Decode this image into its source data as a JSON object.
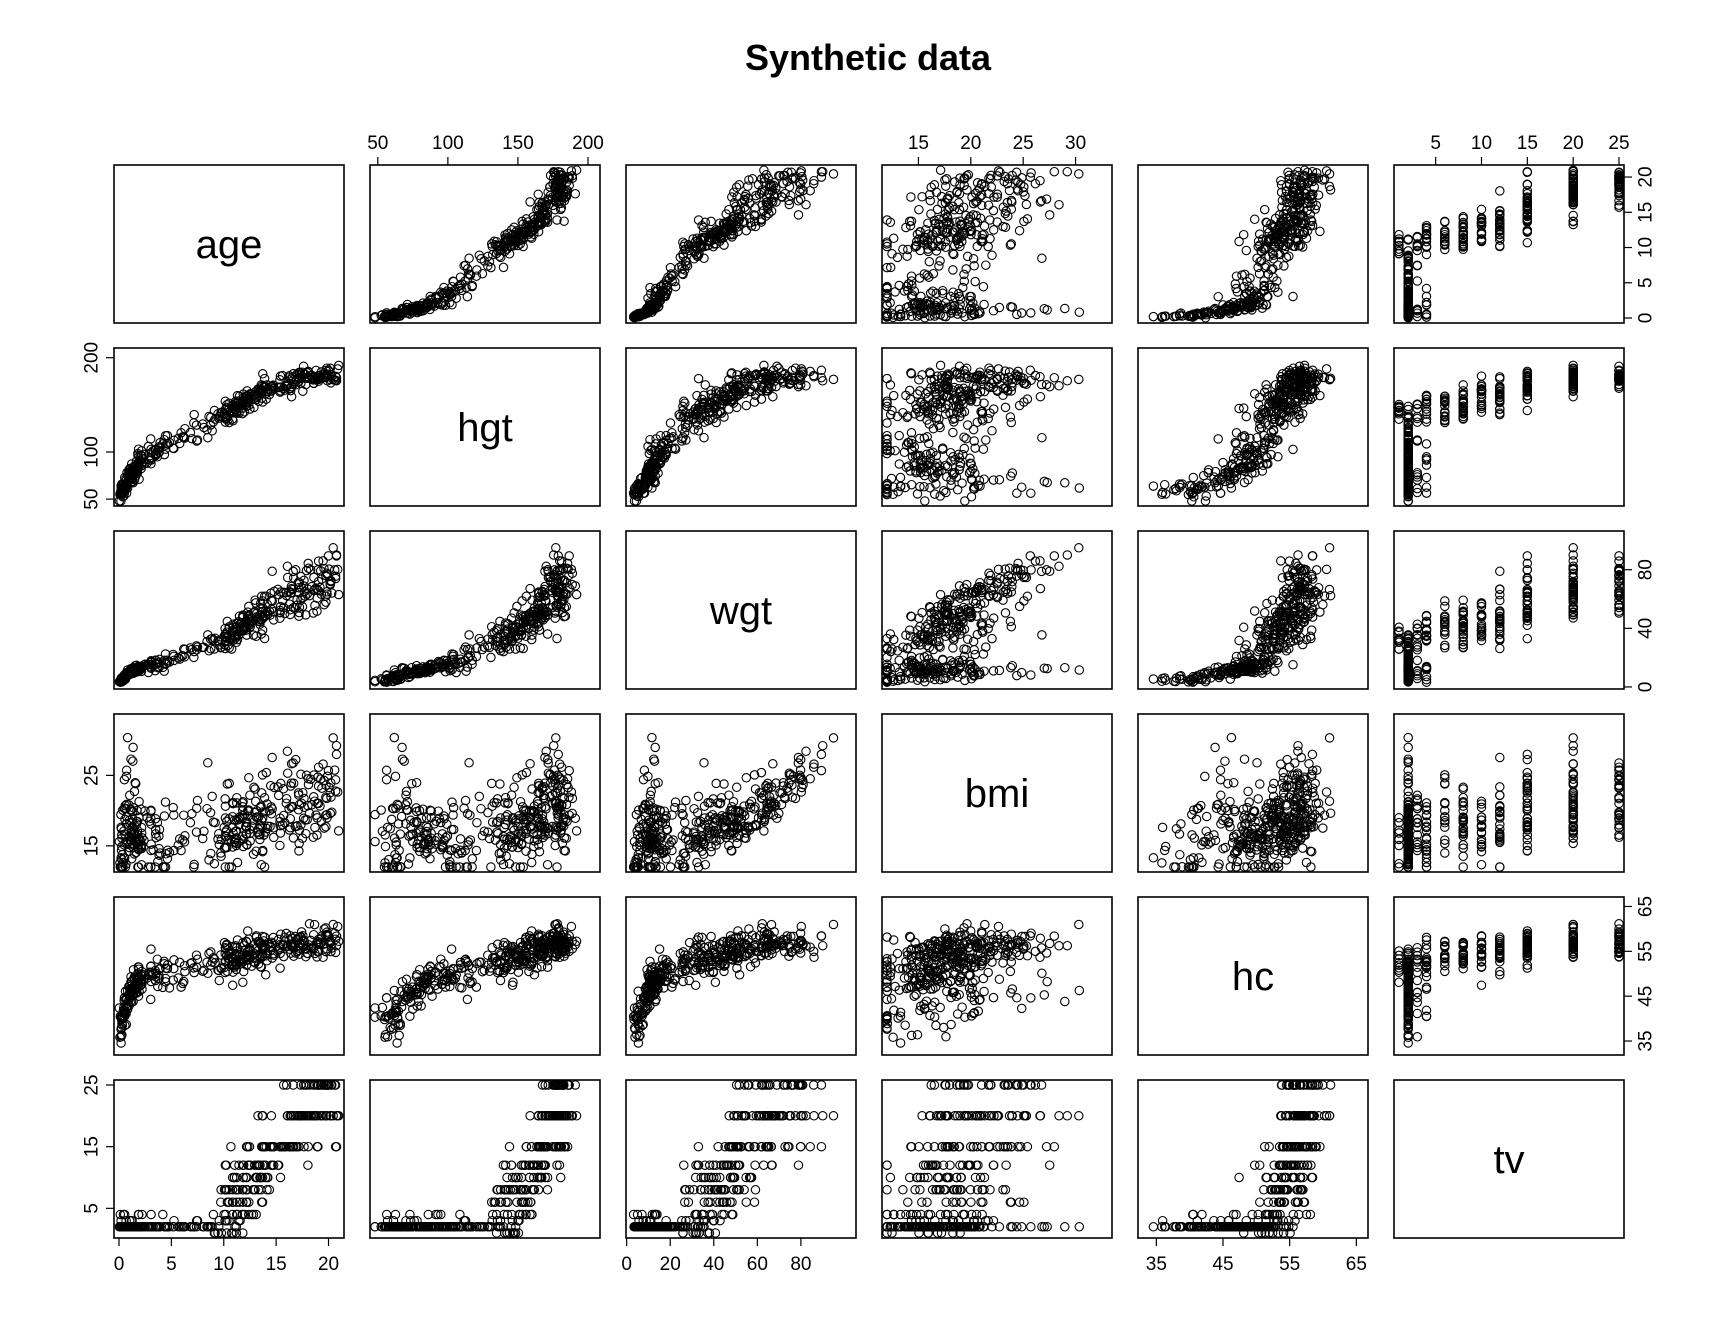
{
  "chart_data": {
    "type": "scatter",
    "subtype": "scatterplot-matrix",
    "title": "Synthetic data",
    "variables": [
      "age",
      "hgt",
      "wgt",
      "bmi",
      "hc",
      "tv"
    ],
    "ranges": {
      "age": [
        0,
        21
      ],
      "hgt": [
        48,
        205
      ],
      "wgt": [
        2,
        103
      ],
      "bmi": [
        12,
        33
      ],
      "hc": [
        33,
        66
      ],
      "tv": [
        1,
        25
      ]
    },
    "ticks": {
      "age": [
        0,
        5,
        10,
        15,
        20
      ],
      "hgt": [
        50,
        100,
        150,
        200
      ],
      "wgt": [
        0,
        20,
        40,
        60,
        80
      ],
      "bmi": [
        15,
        20,
        25,
        30
      ],
      "hc": [
        35,
        45,
        55,
        65
      ],
      "tv": [
        5,
        10,
        15,
        20,
        25
      ]
    },
    "tick_labels": {
      "age_bottom": [
        "0",
        "5",
        "10",
        "15",
        "20"
      ],
      "age_right": [
        "0",
        "5",
        "10",
        "15",
        "20"
      ],
      "hgt_top": [
        "50",
        "100",
        "150",
        "200"
      ],
      "hgt_left": [
        "50",
        "100",
        "200"
      ],
      "wgt_bottom": [
        "0",
        "20",
        "40",
        "60",
        "80"
      ],
      "wgt_right": [
        "0",
        "40",
        "80"
      ],
      "bmi_top": [
        "15",
        "20",
        "25",
        "30"
      ],
      "bmi_left": [
        "15",
        "25"
      ],
      "hc_bottom": [
        "35",
        "45",
        "55",
        "65"
      ],
      "hc_right": [
        "35",
        "45",
        "55",
        "65"
      ],
      "tv_top": [
        "5",
        "10",
        "15",
        "20",
        "25"
      ],
      "tv_left": [
        "5",
        "15",
        "25"
      ]
    },
    "tv_levels": [
      1,
      2,
      3,
      4,
      6,
      8,
      10,
      12,
      15,
      20,
      25
    ],
    "grid": false,
    "legend": "none",
    "point_shape": "open-circle",
    "point_color": "#000000",
    "n_points": 400
  }
}
